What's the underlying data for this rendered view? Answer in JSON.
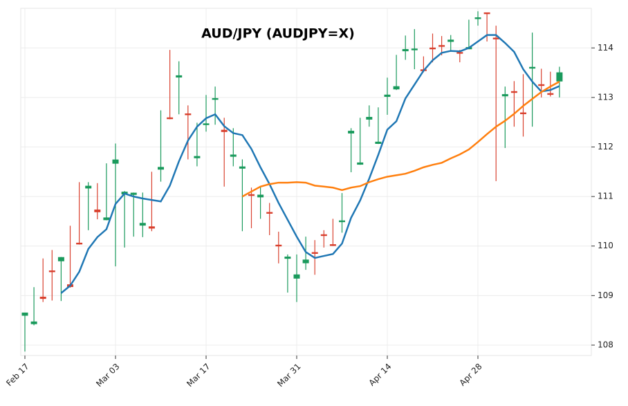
{
  "chart_data": {
    "type": "candlestick",
    "title": "AUD/JPY (AUDJPY=X)",
    "categories": [
      "Feb 17",
      null,
      null,
      null,
      null,
      null,
      null,
      null,
      null,
      null,
      "Mar 03",
      null,
      null,
      null,
      null,
      null,
      null,
      null,
      null,
      null,
      "Mar 17",
      null,
      null,
      null,
      null,
      null,
      null,
      null,
      null,
      null,
      "Mar 31",
      null,
      null,
      null,
      null,
      null,
      null,
      null,
      null,
      null,
      "Apr 14",
      null,
      null,
      null,
      null,
      null,
      null,
      null,
      null,
      null,
      "Apr 28",
      null,
      null,
      null,
      null,
      null,
      null,
      null,
      null,
      null
    ],
    "open": [
      108.6,
      108.43,
      108.97,
      109.5,
      109.7,
      109.22,
      110.06,
      111.17,
      110.73,
      110.53,
      111.67,
      111.05,
      111.04,
      110.42,
      110.39,
      111.55,
      112.59,
      113.41,
      112.67,
      111.78,
      112.45,
      112.96,
      112.34,
      111.81,
      111.57,
      111.04,
      110.99,
      110.68,
      110.02,
      109.75,
      109.35,
      109.66,
      109.87,
      110.23,
      110.03,
      110.49,
      112.28,
      111.65,
      112.56,
      112.07,
      113.02,
      113.17,
      113.94,
      113.96,
      113.56,
      114.0,
      114.05,
      114.13,
      113.91,
      113.98,
      114.59,
      114.71,
      114.2,
      113.03,
      113.12,
      112.69,
      113.59,
      113.26,
      113.08,
      113.33
    ],
    "high": [
      108.65,
      109.17,
      109.75,
      109.92,
      109.78,
      110.41,
      111.29,
      111.29,
      111.27,
      111.67,
      112.07,
      111.11,
      111.08,
      111.08,
      111.5,
      112.74,
      113.96,
      113.73,
      112.84,
      112.49,
      113.05,
      113.22,
      112.59,
      112.38,
      111.75,
      111.18,
      111.2,
      110.87,
      110.29,
      109.83,
      109.83,
      110.19,
      110.12,
      110.32,
      110.55,
      111.07,
      112.38,
      112.59,
      112.84,
      112.8,
      113.4,
      113.86,
      114.25,
      114.38,
      113.83,
      114.29,
      114.24,
      114.26,
      113.96,
      114.57,
      114.74,
      114.71,
      114.45,
      113.22,
      113.33,
      113.47,
      114.31,
      113.58,
      113.52,
      113.62
    ],
    "low": [
      107.87,
      108.4,
      108.87,
      108.9,
      108.89,
      109.16,
      110.03,
      110.32,
      110.54,
      110.52,
      109.59,
      109.97,
      110.19,
      110.18,
      110.3,
      111.3,
      112.56,
      112.66,
      111.75,
      111.61,
      112.31,
      112.45,
      111.2,
      111.61,
      110.3,
      110.36,
      110.55,
      110.22,
      109.65,
      109.06,
      108.87,
      109.52,
      109.42,
      109.97,
      110.0,
      110.27,
      111.49,
      111.64,
      112.41,
      112.06,
      112.65,
      113.15,
      113.76,
      113.57,
      113.51,
      113.71,
      113.85,
      113.92,
      113.71,
      113.98,
      114.45,
      114.13,
      111.31,
      111.98,
      112.41,
      112.21,
      112.41,
      113.0,
      113.02,
      113.0
    ],
    "close": [
      108.65,
      108.47,
      108.94,
      109.48,
      109.77,
      109.18,
      110.04,
      111.21,
      110.69,
      110.57,
      111.74,
      111.09,
      111.07,
      110.46,
      110.36,
      111.59,
      112.57,
      113.44,
      112.65,
      111.81,
      112.47,
      112.98,
      112.31,
      111.84,
      111.6,
      111.02,
      111.03,
      110.66,
      110.0,
      109.78,
      109.42,
      109.72,
      109.85,
      110.21,
      110.01,
      110.51,
      112.32,
      111.68,
      112.6,
      112.1,
      113.05,
      113.22,
      113.97,
      113.98,
      113.54,
      113.98,
      114.03,
      114.16,
      113.89,
      114.01,
      114.61,
      114.69,
      114.18,
      113.06,
      113.1,
      112.67,
      113.61,
      113.24,
      113.06,
      113.5
    ],
    "up_color": "#1a9a5c",
    "down_color": "#d9412f",
    "series": [
      {
        "color": "#1f77b4",
        "values": [
          null,
          null,
          null,
          null,
          109.05,
          109.2,
          109.48,
          109.94,
          110.18,
          110.34,
          110.85,
          111.06,
          111.0,
          110.96,
          110.93,
          110.9,
          111.22,
          111.71,
          112.13,
          112.41,
          112.58,
          112.66,
          112.42,
          112.28,
          112.24,
          111.96,
          111.59,
          111.25,
          110.87,
          110.53,
          110.19,
          109.88,
          109.76,
          109.8,
          109.84,
          110.05,
          110.57,
          110.92,
          111.36,
          111.84,
          112.35,
          112.52,
          112.98,
          113.26,
          113.54,
          113.75,
          113.9,
          113.94,
          113.93,
          114.0,
          114.13,
          114.26,
          114.26,
          114.1,
          113.92,
          113.57,
          113.32,
          113.12,
          113.15,
          113.23
        ]
      },
      {
        "color": "#ff7f0e",
        "values": [
          null,
          null,
          null,
          null,
          null,
          null,
          null,
          null,
          null,
          null,
          null,
          null,
          null,
          null,
          null,
          null,
          null,
          null,
          null,
          null,
          null,
          null,
          null,
          null,
          111.0,
          111.1,
          111.2,
          111.25,
          111.28,
          111.28,
          111.29,
          111.28,
          111.22,
          111.2,
          111.18,
          111.13,
          111.18,
          111.21,
          111.29,
          111.35,
          111.4,
          111.43,
          111.46,
          111.52,
          111.59,
          111.64,
          111.68,
          111.77,
          111.85,
          111.95,
          112.1,
          112.26,
          112.41,
          112.53,
          112.67,
          112.83,
          112.97,
          113.11,
          113.22,
          113.32
        ]
      }
    ],
    "ylim": [
      107.79,
      114.8
    ],
    "yticks": [
      108,
      109,
      110,
      111,
      112,
      113,
      114
    ],
    "grid": true
  }
}
